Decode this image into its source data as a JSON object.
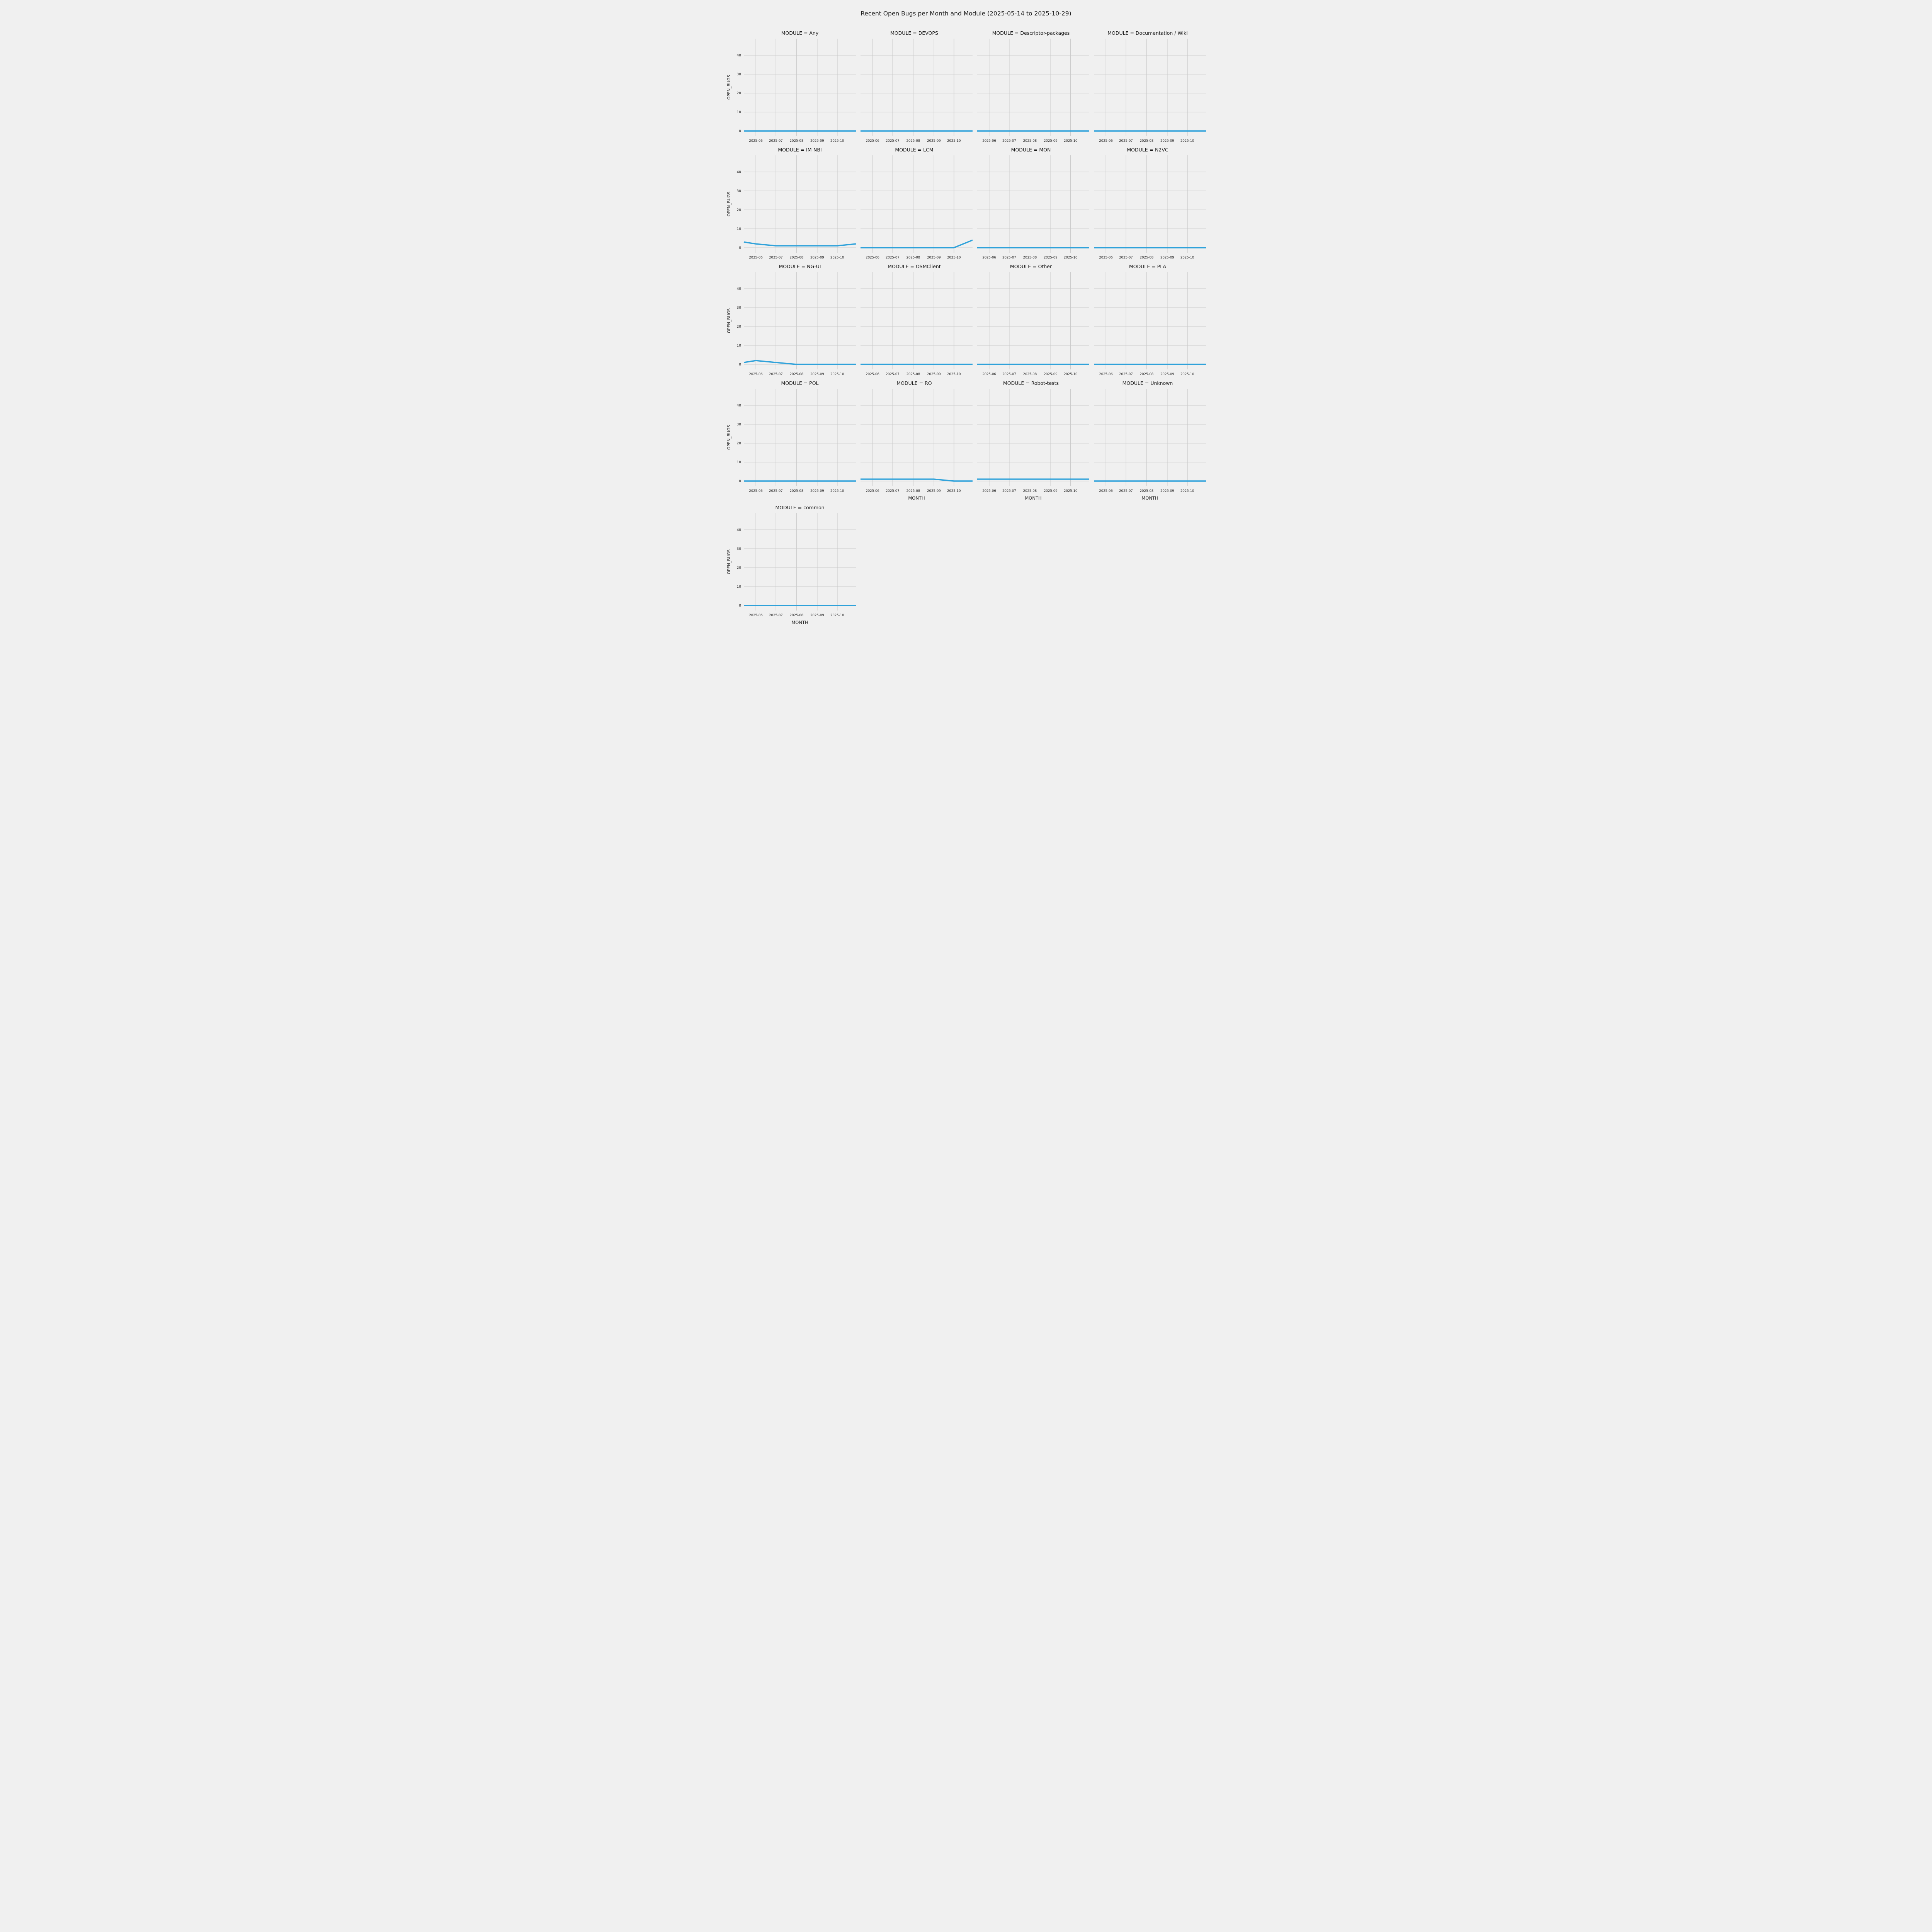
{
  "title": "Recent Open Bugs per Month and Module (2025-05-14 to 2025-10-29)",
  "chart_data": {
    "type": "line",
    "title": "Recent Open Bugs per Month and Module (2025-05-14 to 2025-10-29)",
    "facet_variable": "MODULE",
    "xlabel": "MONTH",
    "ylabel": "OPEN_BUGS",
    "yticks": [
      0,
      10,
      20,
      30,
      40
    ],
    "ylim": [
      -2.65,
      48.8
    ],
    "x_domain": [
      "2025-05-14",
      "2025-10-29"
    ],
    "xtick_labels": [
      "2025-06",
      "2025-07",
      "2025-08",
      "2025-09",
      "2025-10"
    ],
    "xtick_dates": [
      "2025-06-01",
      "2025-07-01",
      "2025-08-01",
      "2025-09-01",
      "2025-10-01"
    ],
    "x_dates": [
      "2025-05-14",
      "2025-06-01",
      "2025-07-01",
      "2025-08-01",
      "2025-09-01",
      "2025-10-01",
      "2025-10-29"
    ],
    "line_color": "#30a2da",
    "background_color": "#f0f0f0",
    "grid_color": "#cbcbcb",
    "grid": true,
    "legend": "none",
    "facets": [
      {
        "module": "Any",
        "label": "MODULE = Any",
        "values": [
          0,
          0,
          0,
          0,
          0,
          0,
          0
        ]
      },
      {
        "module": "DEVOPS",
        "label": "MODULE = DEVOPS",
        "values": [
          0,
          0,
          0,
          0,
          0,
          0,
          0
        ]
      },
      {
        "module": "Descriptor-packages",
        "label": "MODULE = Descriptor-packages",
        "values": [
          0,
          0,
          0,
          0,
          0,
          0,
          0
        ]
      },
      {
        "module": "Documentation / Wiki",
        "label": "MODULE = Documentation / Wiki",
        "values": [
          0,
          0,
          0,
          0,
          0,
          0,
          0
        ]
      },
      {
        "module": "IM-NBI",
        "label": "MODULE = IM-NBI",
        "values": [
          3,
          2,
          1,
          1,
          1,
          1,
          2
        ]
      },
      {
        "module": "LCM",
        "label": "MODULE = LCM",
        "values": [
          0,
          0,
          0,
          0,
          0,
          0,
          4
        ]
      },
      {
        "module": "MON",
        "label": "MODULE = MON",
        "values": [
          0,
          0,
          0,
          0,
          0,
          0,
          0
        ]
      },
      {
        "module": "N2VC",
        "label": "MODULE = N2VC",
        "values": [
          0,
          0,
          0,
          0,
          0,
          0,
          0
        ]
      },
      {
        "module": "NG-UI",
        "label": "MODULE = NG-UI",
        "values": [
          1,
          2,
          1,
          0,
          0,
          0,
          0
        ]
      },
      {
        "module": "OSMClient",
        "label": "MODULE = OSMClient",
        "values": [
          0,
          0,
          0,
          0,
          0,
          0,
          0
        ]
      },
      {
        "module": "Other",
        "label": "MODULE = Other",
        "values": [
          0,
          0,
          0,
          0,
          0,
          0,
          0
        ]
      },
      {
        "module": "PLA",
        "label": "MODULE = PLA",
        "values": [
          0,
          0,
          0,
          0,
          0,
          0,
          0
        ]
      },
      {
        "module": "POL",
        "label": "MODULE = POL",
        "values": [
          0,
          0,
          0,
          0,
          0,
          0,
          0
        ]
      },
      {
        "module": "RO",
        "label": "MODULE = RO",
        "values": [
          1,
          1,
          1,
          1,
          1,
          0,
          0
        ]
      },
      {
        "module": "Robot-tests",
        "label": "MODULE = Robot-tests",
        "values": [
          1,
          1,
          1,
          1,
          1,
          1,
          1
        ]
      },
      {
        "module": "Unknown",
        "label": "MODULE = Unknown",
        "values": [
          0,
          0,
          0,
          0,
          0,
          0,
          0
        ]
      },
      {
        "module": "common",
        "label": "MODULE = common",
        "values": [
          0,
          0,
          0,
          0,
          0,
          0,
          0
        ]
      }
    ]
  }
}
